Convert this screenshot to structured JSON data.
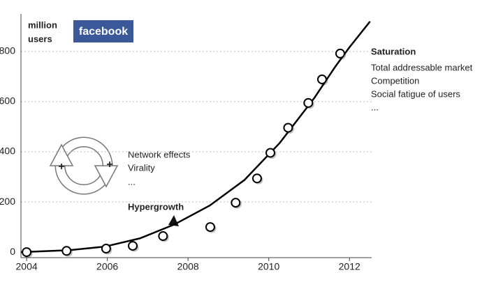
{
  "chart_data": {
    "type": "scatter",
    "y_label": [
      "million",
      "users"
    ],
    "logo": "facebook",
    "x": [
      2004.0,
      2004.99,
      2005.97,
      2006.63,
      2007.38,
      2008.55,
      2009.18,
      2009.71,
      2010.04,
      2010.48,
      2010.98,
      2011.32,
      2011.77
    ],
    "values": [
      0,
      5,
      14,
      25,
      64,
      100,
      197,
      294,
      396,
      496,
      595,
      689,
      792
    ],
    "curve": {
      "x": [
        2003.86,
        2005.07,
        2005.94,
        2006.81,
        2007.67,
        2008.54,
        2009.4,
        2010.27,
        2011.13,
        2011.65,
        2011.99,
        2012.51
      ],
      "values": [
        0,
        8,
        22,
        55,
        111,
        186,
        288,
        435,
        615,
        740,
        815,
        920
      ]
    },
    "xlim": [
      2003.86,
      2012.55
    ],
    "ylim": [
      -22,
      950
    ],
    "xticks": [
      2004,
      2006,
      2008,
      2010,
      2012
    ],
    "yticks": [
      0,
      200,
      400,
      600,
      800
    ],
    "grid": true,
    "annotations": {
      "saturation": {
        "title": "Saturation",
        "lines": [
          "Total addressable market",
          "Competition",
          "Social fatigue of users",
          "..."
        ]
      },
      "network": {
        "lines": [
          "Network effects",
          "Virality",
          "..."
        ],
        "signs": [
          "+",
          "+"
        ]
      },
      "hypergrowth": "Hypergrowth"
    }
  }
}
